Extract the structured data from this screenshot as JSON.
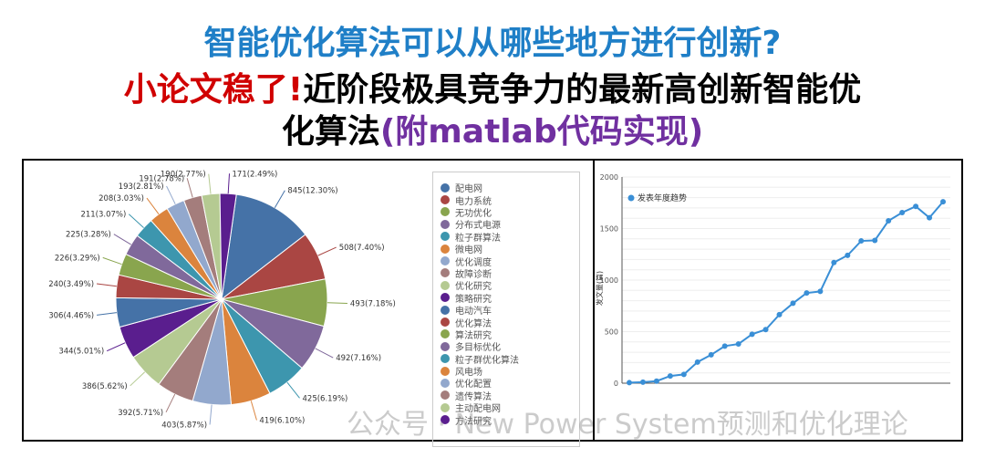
{
  "title": {
    "line1": "智能优化算法可以从哪些地方进行创新?",
    "line2_red": "小论文稳了!",
    "line2_rest": "近阶段极具竞争力的最新高创新智能优",
    "line3_a": "化算法",
    "line3_b": "(附matlab代码实现)"
  },
  "watermark": "公众号 · New Power System预测和优化理论",
  "chart_data": [
    {
      "type": "pie",
      "categories": [
        "配电网",
        "电力系统",
        "无功优化",
        "分布式电源",
        "粒子群算法",
        "微电网",
        "优化调度",
        "故障诊断",
        "优化研究",
        "策略研究",
        "电动汽车",
        "优化算法",
        "算法研究",
        "多目标优化",
        "粒子群优化算法",
        "风电场",
        "优化配置",
        "遗传算法",
        "主动配电网",
        "方法研究"
      ],
      "values": [
        845,
        508,
        493,
        492,
        425,
        419,
        403,
        392,
        386,
        344,
        306,
        240,
        226,
        225,
        211,
        208,
        193,
        191,
        190,
        171
      ],
      "labels": [
        "845(12.30%)",
        "508(7.40%)",
        "493(7.18%)",
        "492(7.16%)",
        "425(6.19%)",
        "419(6.10%)",
        "403(5.87%)",
        "392(5.71%)",
        "386(5.62%)",
        "344(5.01%)",
        "306(4.46%)",
        "240(3.49%)",
        "226(3.29%)",
        "225(3.28%)",
        "211(3.07%)",
        "208(3.03%)",
        "193(2.81%)",
        "191(2.78%)",
        "190(2.77%)",
        "171(2.49%)"
      ],
      "colors": [
        "#4572a7",
        "#aa4643",
        "#89a54e",
        "#80699b",
        "#3d96ae",
        "#db843d",
        "#92a8cd",
        "#a47d7c",
        "#b5ca92",
        "#5a1e8e",
        "#4572a7",
        "#aa4643",
        "#89a54e",
        "#80699b",
        "#3d96ae",
        "#db843d",
        "#92a8cd",
        "#a47d7c",
        "#b5ca92",
        "#5a1e8e"
      ],
      "legend": "right"
    },
    {
      "type": "line",
      "series": [
        {
          "name": "发表年度趋势",
          "values": [
            5,
            10,
            20,
            70,
            85,
            205,
            275,
            360,
            380,
            475,
            520,
            665,
            775,
            875,
            890,
            1170,
            1240,
            1380,
            1385,
            1575,
            1655,
            1715,
            1605,
            1760
          ]
        }
      ],
      "ylabel": "发文量(篇)",
      "ylim": [
        0,
        2000
      ],
      "yticks": [
        0,
        500,
        1000,
        1500,
        2000
      ],
      "color": "#3a8fd6",
      "grid": true,
      "legend": "top-left"
    }
  ]
}
